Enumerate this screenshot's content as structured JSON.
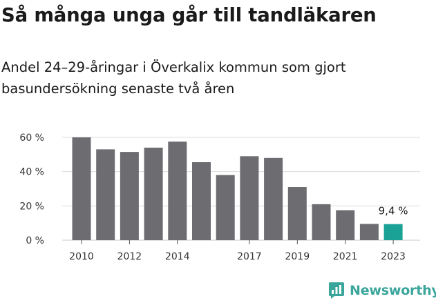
{
  "chart_data": {
    "type": "bar",
    "title": "Så många unga går till tandläkaren",
    "subtitle": "Andel 24–29-åringar i Överkalix kommun som gjort basundersökning senaste två åren",
    "categories": [
      "2010",
      "2011",
      "2012",
      "2013",
      "2014",
      "2015",
      "2016",
      "2017",
      "2018",
      "2019",
      "2020",
      "2021",
      "2022",
      "2023"
    ],
    "x_tick_labels": [
      "2010",
      "2012",
      "2014",
      "2017",
      "2019",
      "2021",
      "2023"
    ],
    "values": [
      60.0,
      53.0,
      51.5,
      54.0,
      57.5,
      45.5,
      38.0,
      49.0,
      48.0,
      31.0,
      21.0,
      17.5,
      9.5,
      9.4
    ],
    "highlight_index": 13,
    "highlight_label": "9,4 %",
    "ylim": [
      0,
      60
    ],
    "yticks": [
      0,
      20,
      40,
      60
    ],
    "ytick_labels": [
      "0 %",
      "20 %",
      "40 %",
      "60 %"
    ],
    "grid": true,
    "xlabel": "",
    "ylabel": ""
  },
  "colors": {
    "bar": "#6d6c71",
    "highlight": "#1aa297",
    "grid": "#dcdcdc",
    "brand": "#3aa59b"
  },
  "brand": {
    "name": "Newsworthy",
    "icon": "newsworthy-logo-icon"
  }
}
